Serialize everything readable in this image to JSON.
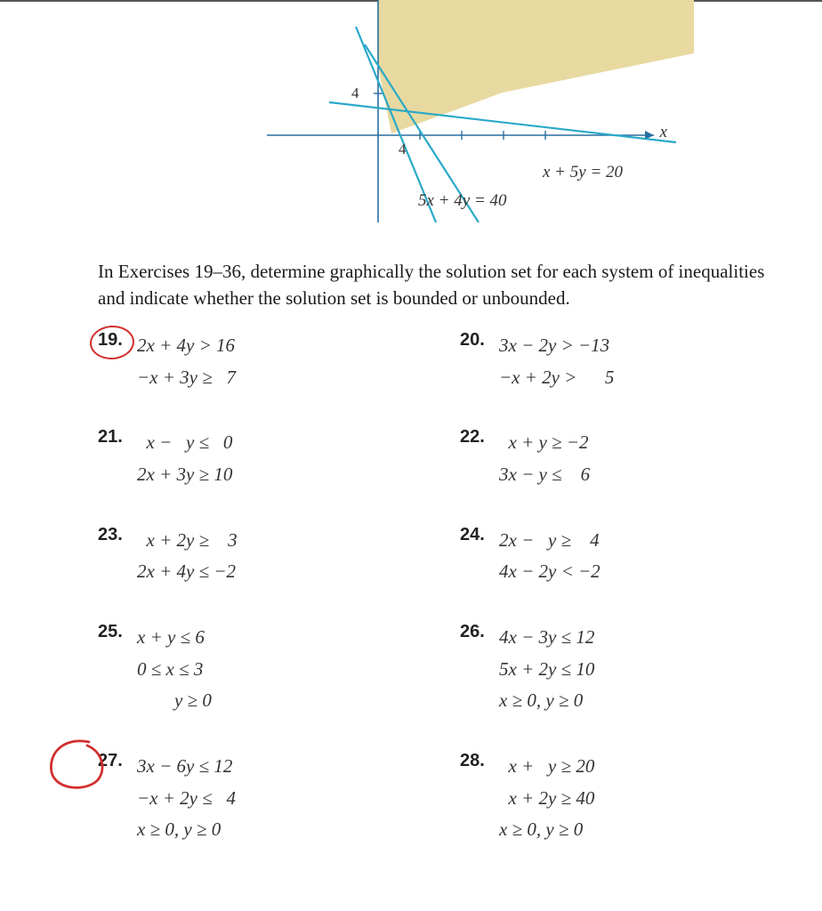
{
  "graph": {
    "axis_x_label": "x",
    "tick_y": "4",
    "tick_x": "4",
    "equation1": "x + 5y = 20",
    "equation2": "5x + 4y = 40",
    "line_color": "#2aa9c9",
    "axis_color": "#2a6ea0",
    "shade_color": "#e8d9a0"
  },
  "instructions": "In Exercises 19–36, determine graphically the solution set for each system of inequalities and indicate whether the solution set is bounded or unbounded.",
  "exercises": [
    {
      "num": "19.",
      "lines": [
        "2x + 4y > 16",
        "−x + 3y ≥   7"
      ],
      "circled_small": true
    },
    {
      "num": "20.",
      "lines": [
        "3x − 2y > −13",
        "−x + 2y >      5"
      ]
    },
    {
      "num": "21.",
      "lines": [
        "  x −   y ≤   0",
        "2x + 3y ≥ 10"
      ]
    },
    {
      "num": "22.",
      "lines": [
        "  x + y ≥ −2",
        "3x − y ≤    6"
      ]
    },
    {
      "num": "23.",
      "lines": [
        "  x + 2y ≥    3",
        "2x + 4y ≤ −2"
      ]
    },
    {
      "num": "24.",
      "lines": [
        "2x −   y ≥    4",
        "4x − 2y < −2"
      ]
    },
    {
      "num": "25.",
      "lines": [
        "x + y ≤ 6",
        "0 ≤ x ≤ 3",
        "        y ≥ 0"
      ]
    },
    {
      "num": "26.",
      "lines": [
        "4x − 3y ≤ 12",
        "5x + 2y ≤ 10",
        "x ≥ 0, y ≥ 0"
      ]
    },
    {
      "num": "27.",
      "lines": [
        "3x − 6y ≤ 12",
        "−x + 2y ≤   4",
        "x ≥ 0, y ≥ 0"
      ],
      "circled_big": true
    },
    {
      "num": "28.",
      "lines": [
        "  x +   y ≥ 20",
        "  x + 2y ≥ 40",
        "x ≥ 0, y ≥ 0"
      ]
    }
  ],
  "annotation_color": "#d22f2f"
}
